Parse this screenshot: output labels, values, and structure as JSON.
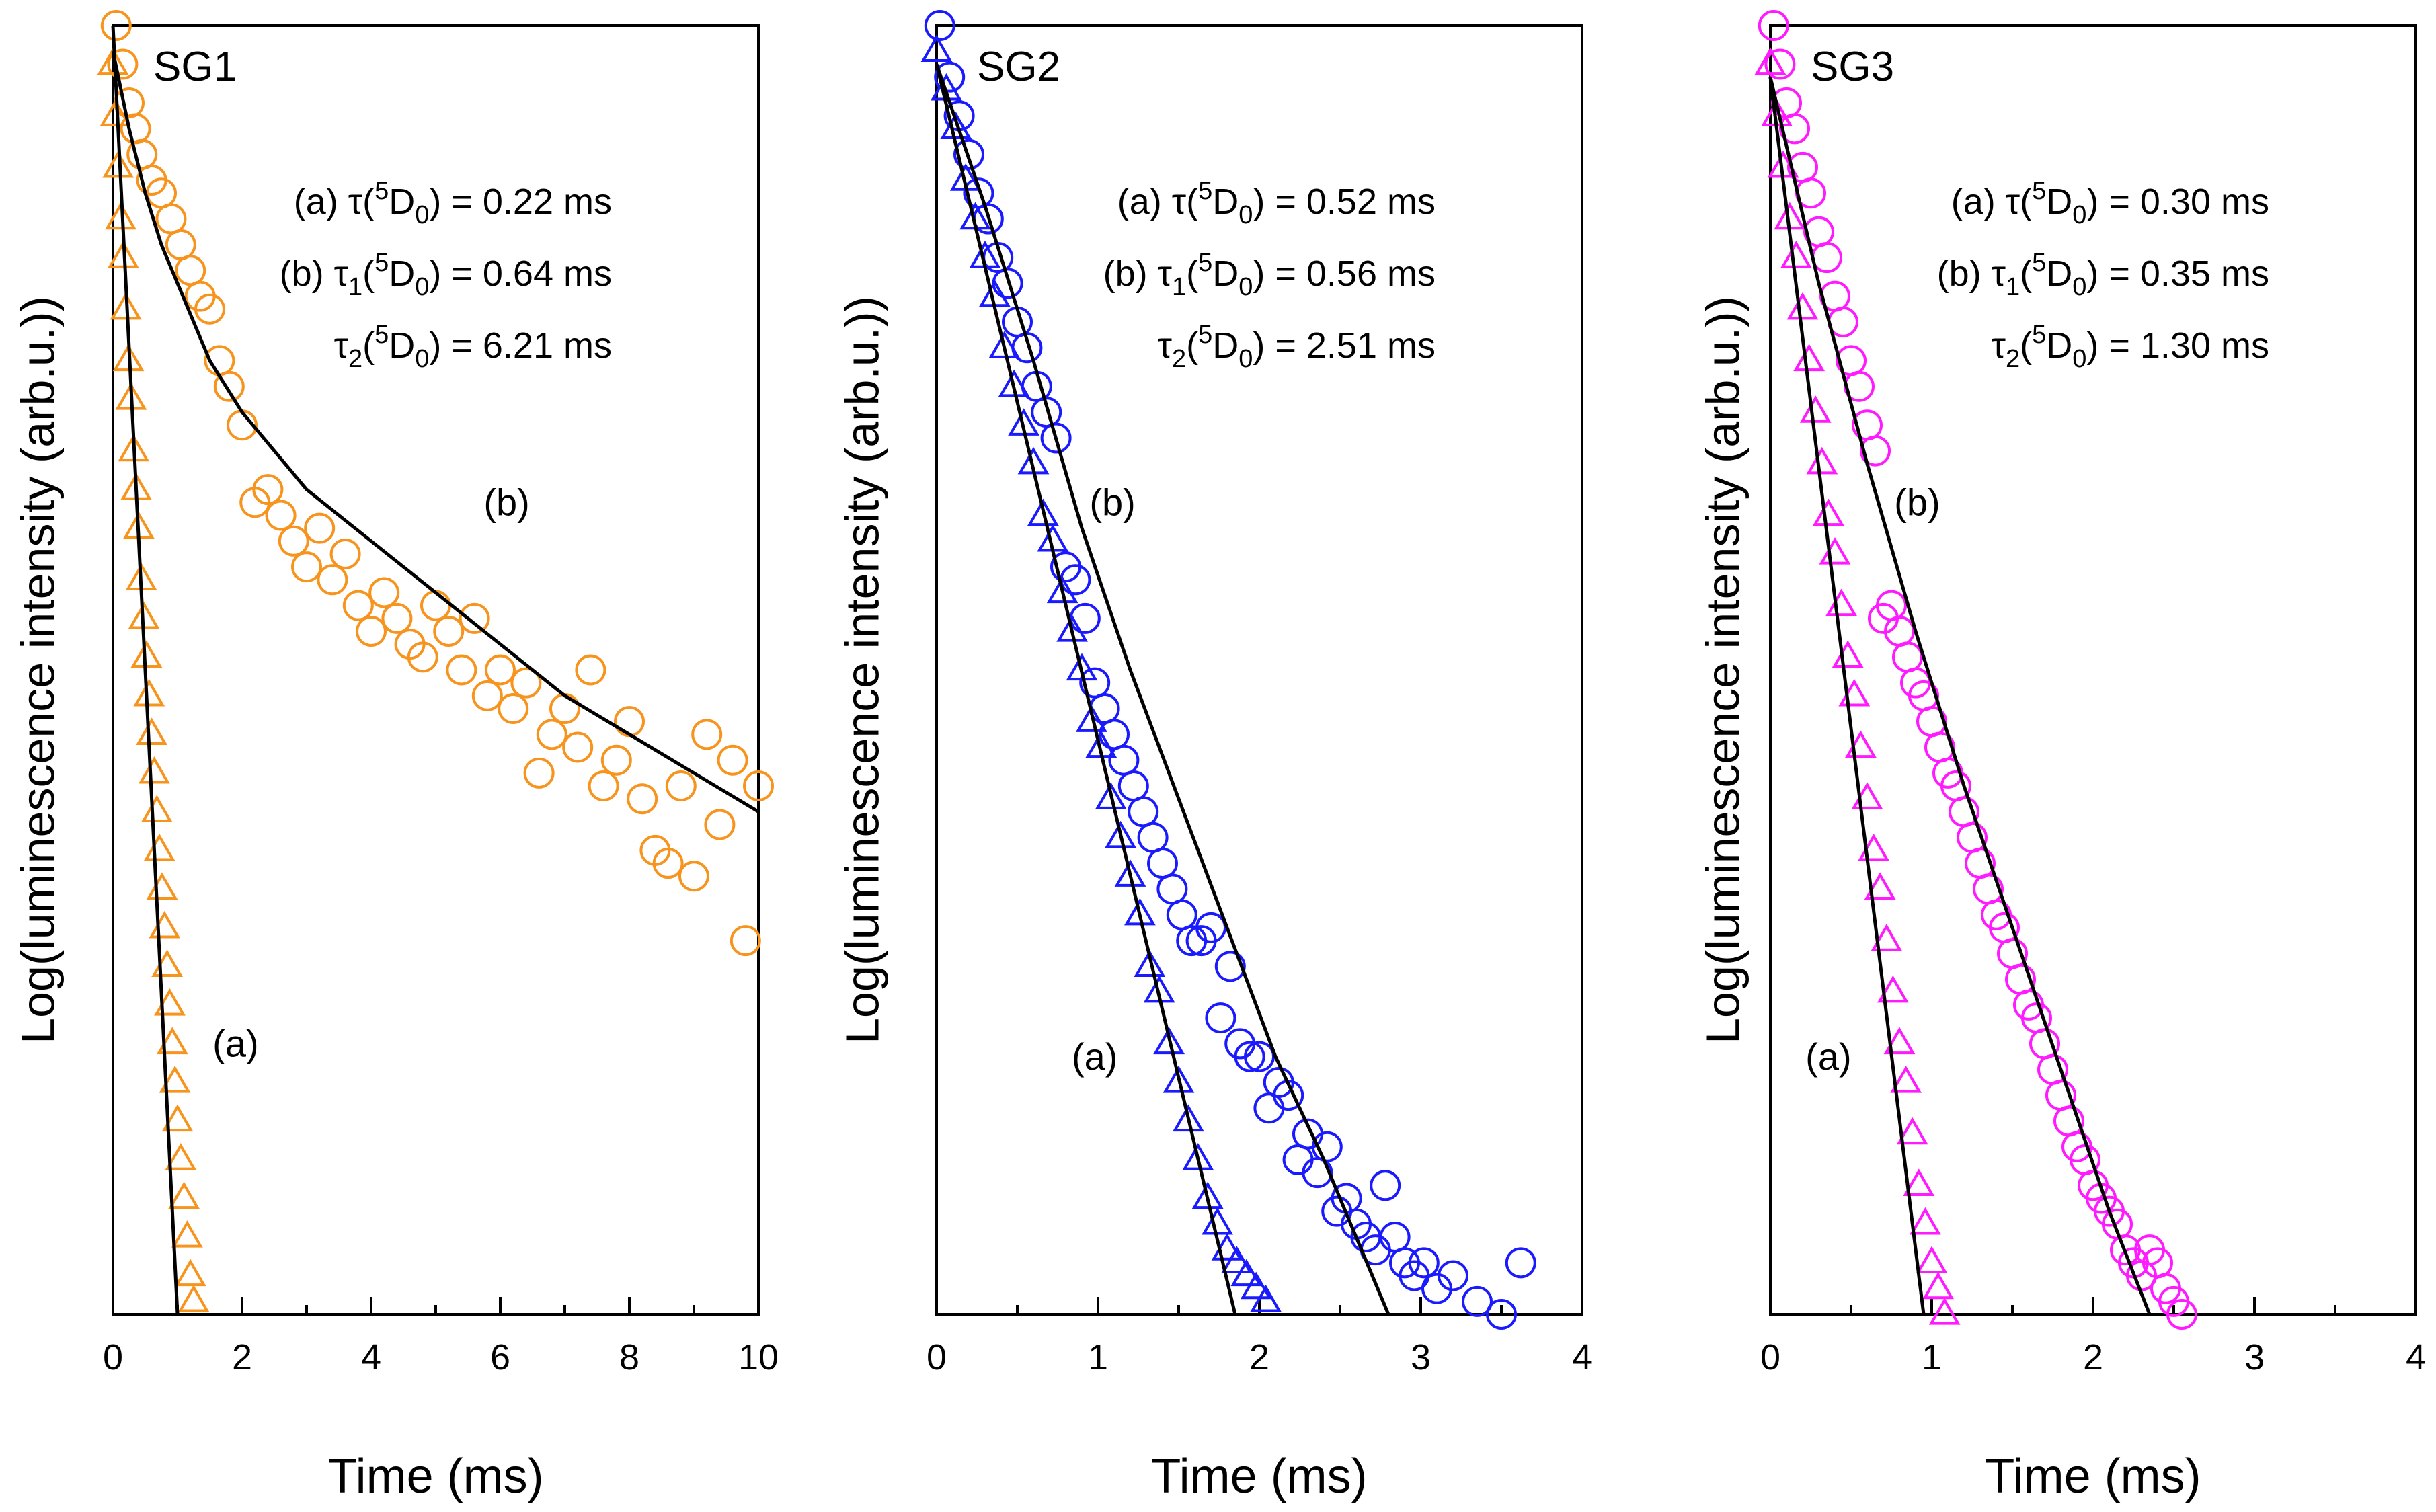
{
  "figure": {
    "panel_count": 3
  },
  "chart_data": [
    {
      "type": "scatter",
      "title": "SG1",
      "xlabel": "Time (ms)",
      "ylabel": "Log(luminescence intensity (arb.u.))",
      "xlim": [
        0,
        10
      ],
      "ylim": [
        0,
        1
      ],
      "xticks": [
        0,
        2,
        4,
        6,
        8,
        10
      ],
      "color": "#f7941d",
      "series": [
        {
          "name": "(a)",
          "marker": "triangle",
          "x": [
            0.0,
            0.04,
            0.08,
            0.12,
            0.16,
            0.2,
            0.24,
            0.28,
            0.32,
            0.36,
            0.4,
            0.44,
            0.48,
            0.52,
            0.56,
            0.6,
            0.64,
            0.68,
            0.72,
            0.76,
            0.8,
            0.84,
            0.88,
            0.92,
            0.96,
            1.0,
            1.05,
            1.1,
            1.15,
            1.2,
            1.25
          ],
          "y": [
            0.97,
            0.93,
            0.89,
            0.85,
            0.82,
            0.78,
            0.74,
            0.71,
            0.67,
            0.64,
            0.61,
            0.57,
            0.54,
            0.51,
            0.48,
            0.45,
            0.42,
            0.39,
            0.36,
            0.33,
            0.3,
            0.27,
            0.24,
            0.21,
            0.18,
            0.15,
            0.12,
            0.09,
            0.06,
            0.03,
            0.01
          ]
        },
        {
          "name": "(b)",
          "marker": "circle",
          "x": [
            0.05,
            0.15,
            0.25,
            0.35,
            0.45,
            0.6,
            0.75,
            0.9,
            1.05,
            1.2,
            1.35,
            1.5,
            1.65,
            1.8,
            2.0,
            2.2,
            2.4,
            2.6,
            2.8,
            3.0,
            3.2,
            3.4,
            3.6,
            3.8,
            4.0,
            4.2,
            4.4,
            4.6,
            4.8,
            5.0,
            5.2,
            5.4,
            5.6,
            5.8,
            6.0,
            6.2,
            6.4,
            6.6,
            6.8,
            7.0,
            7.2,
            7.4,
            7.6,
            7.8,
            8.0,
            8.2,
            8.4,
            8.6,
            8.8,
            9.0,
            9.2,
            9.4,
            9.6,
            9.8,
            10.0
          ],
          "y": [
            1.0,
            0.97,
            0.94,
            0.92,
            0.9,
            0.88,
            0.87,
            0.85,
            0.83,
            0.81,
            0.79,
            0.78,
            0.74,
            0.72,
            0.69,
            0.63,
            0.64,
            0.62,
            0.6,
            0.58,
            0.61,
            0.57,
            0.59,
            0.55,
            0.53,
            0.56,
            0.54,
            0.52,
            0.51,
            0.55,
            0.53,
            0.5,
            0.54,
            0.48,
            0.5,
            0.47,
            0.49,
            0.42,
            0.45,
            0.47,
            0.44,
            0.5,
            0.41,
            0.43,
            0.46,
            0.4,
            0.36,
            0.35,
            0.41,
            0.34,
            0.45,
            0.38,
            0.43,
            0.29,
            0.41
          ]
        }
      ],
      "fits": [
        {
          "name": "(a)",
          "x": [
            0.0,
            1.0
          ],
          "y": [
            1.0,
            0.0
          ]
        },
        {
          "name": "(b)",
          "x": [
            0.0,
            0.25,
            0.5,
            0.75,
            1.0,
            1.5,
            2.0,
            2.5,
            3.0,
            4.0,
            5.0,
            6.0,
            7.0,
            8.0,
            9.0,
            10.0
          ],
          "y": [
            0.98,
            0.92,
            0.87,
            0.83,
            0.8,
            0.74,
            0.7,
            0.67,
            0.64,
            0.6,
            0.56,
            0.52,
            0.48,
            0.45,
            0.42,
            0.39
          ]
        }
      ],
      "series_labels": [
        {
          "text": "(a)",
          "x": 1.9,
          "y": 0.2
        },
        {
          "text": "(b)",
          "x": 6.1,
          "y": 0.62
        }
      ],
      "annotations": [
        {
          "prefix": "(a) ",
          "sym": "τ",
          "symsub": "",
          "val": " = 0.22 ms"
        },
        {
          "prefix": "(b) ",
          "sym": "τ",
          "symsub": "1",
          "val": " = 0.64 ms"
        },
        {
          "prefix": "",
          "sym": "τ",
          "symsub": "2",
          "val": " = 6.21 ms"
        }
      ],
      "term": {
        "sup": "5",
        "letter": "D",
        "sub": "0"
      }
    },
    {
      "type": "scatter",
      "title": "SG2",
      "xlabel": "Time (ms)",
      "ylabel": "Log(luminescence intensity (arb.u.))",
      "xlim": [
        0,
        4
      ],
      "ylim": [
        0,
        1
      ],
      "xticks": [
        0,
        1,
        2,
        3,
        4
      ],
      "color": "#1a1aff",
      "series": [
        {
          "name": "(a)",
          "marker": "triangle",
          "x": [
            0.0,
            0.06,
            0.12,
            0.18,
            0.24,
            0.3,
            0.36,
            0.42,
            0.48,
            0.54,
            0.6,
            0.66,
            0.72,
            0.78,
            0.84,
            0.9,
            0.96,
            1.02,
            1.08,
            1.14,
            1.2,
            1.26,
            1.32,
            1.38,
            1.44,
            1.5,
            1.56,
            1.62,
            1.68,
            1.74,
            1.8,
            1.86,
            1.92,
            1.98,
            2.04
          ],
          "y": [
            0.98,
            0.95,
            0.92,
            0.88,
            0.85,
            0.82,
            0.79,
            0.75,
            0.72,
            0.69,
            0.66,
            0.62,
            0.6,
            0.56,
            0.53,
            0.5,
            0.46,
            0.44,
            0.4,
            0.37,
            0.34,
            0.31,
            0.27,
            0.25,
            0.21,
            0.18,
            0.15,
            0.12,
            0.09,
            0.07,
            0.05,
            0.04,
            0.03,
            0.02,
            0.01
          ]
        },
        {
          "name": "(b)",
          "marker": "circle",
          "x": [
            0.02,
            0.08,
            0.14,
            0.2,
            0.26,
            0.32,
            0.38,
            0.44,
            0.5,
            0.56,
            0.62,
            0.68,
            0.74,
            0.8,
            0.86,
            0.92,
            0.98,
            1.04,
            1.1,
            1.16,
            1.22,
            1.28,
            1.34,
            1.4,
            1.46,
            1.52,
            1.58,
            1.64,
            1.7,
            1.76,
            1.82,
            1.88,
            1.94,
            2.0,
            2.06,
            2.12,
            2.18,
            2.24,
            2.3,
            2.36,
            2.42,
            2.48,
            2.54,
            2.6,
            2.66,
            2.72,
            2.78,
            2.84,
            2.9,
            2.96,
            3.02,
            3.1,
            3.2,
            3.35,
            3.5,
            3.62
          ],
          "y": [
            1.0,
            0.96,
            0.93,
            0.9,
            0.87,
            0.85,
            0.82,
            0.8,
            0.77,
            0.75,
            0.72,
            0.7,
            0.68,
            0.58,
            0.57,
            0.54,
            0.49,
            0.47,
            0.45,
            0.43,
            0.41,
            0.39,
            0.37,
            0.35,
            0.33,
            0.31,
            0.29,
            0.29,
            0.3,
            0.23,
            0.27,
            0.21,
            0.2,
            0.2,
            0.16,
            0.18,
            0.17,
            0.12,
            0.14,
            0.11,
            0.13,
            0.08,
            0.09,
            0.07,
            0.06,
            0.05,
            0.1,
            0.06,
            0.04,
            0.03,
            0.04,
            0.02,
            0.03,
            0.01,
            0.0,
            0.04
          ]
        }
      ],
      "fits": [
        {
          "name": "(a)",
          "x": [
            0.0,
            1.85
          ],
          "y": [
            0.97,
            0.0
          ]
        },
        {
          "name": "(b)",
          "x": [
            0.0,
            0.3,
            0.6,
            0.9,
            1.2,
            1.5,
            1.8,
            2.1,
            2.4,
            2.7,
            2.8
          ],
          "y": [
            0.97,
            0.86,
            0.74,
            0.61,
            0.5,
            0.4,
            0.3,
            0.2,
            0.12,
            0.03,
            0.0
          ]
        }
      ],
      "series_labels": [
        {
          "text": "(a)",
          "x": 0.98,
          "y": 0.19
        },
        {
          "text": "(b)",
          "x": 1.09,
          "y": 0.62
        }
      ],
      "annotations": [
        {
          "prefix": "(a) ",
          "sym": "τ",
          "symsub": "",
          "val": " = 0.52 ms"
        },
        {
          "prefix": "(b) ",
          "sym": "τ",
          "symsub": "1",
          "val": " = 0.56 ms"
        },
        {
          "prefix": "",
          "sym": "τ",
          "symsub": "2",
          "val": " = 2.51 ms"
        }
      ],
      "term": {
        "sup": "5",
        "letter": "D",
        "sub": "0"
      }
    },
    {
      "type": "scatter",
      "title": "SG3",
      "xlabel": "Time (ms)",
      "ylabel": "Log(luminescence intensity (arb.u.))",
      "xlim": [
        0,
        4
      ],
      "ylim": [
        0,
        1
      ],
      "xticks": [
        0,
        1,
        2,
        3,
        4
      ],
      "color": "#ff1aff",
      "series": [
        {
          "name": "(a)",
          "marker": "triangle",
          "x": [
            0.0,
            0.04,
            0.08,
            0.12,
            0.16,
            0.2,
            0.24,
            0.28,
            0.32,
            0.36,
            0.4,
            0.44,
            0.48,
            0.52,
            0.56,
            0.6,
            0.64,
            0.68,
            0.72,
            0.76,
            0.8,
            0.84,
            0.88,
            0.92,
            0.96,
            1.0,
            1.04,
            1.08
          ],
          "y": [
            0.97,
            0.93,
            0.89,
            0.85,
            0.82,
            0.78,
            0.74,
            0.7,
            0.66,
            0.62,
            0.59,
            0.55,
            0.51,
            0.48,
            0.44,
            0.4,
            0.36,
            0.33,
            0.29,
            0.25,
            0.21,
            0.18,
            0.14,
            0.1,
            0.07,
            0.04,
            0.02,
            0.0
          ]
        },
        {
          "name": "(b)",
          "marker": "circle",
          "x": [
            0.02,
            0.06,
            0.1,
            0.15,
            0.2,
            0.25,
            0.3,
            0.35,
            0.4,
            0.45,
            0.5,
            0.55,
            0.6,
            0.65,
            0.7,
            0.75,
            0.8,
            0.85,
            0.9,
            0.95,
            1.0,
            1.05,
            1.1,
            1.15,
            1.2,
            1.25,
            1.3,
            1.35,
            1.4,
            1.45,
            1.5,
            1.55,
            1.6,
            1.65,
            1.7,
            1.75,
            1.8,
            1.85,
            1.9,
            1.95,
            2.0,
            2.05,
            2.1,
            2.15,
            2.2,
            2.25,
            2.3,
            2.35,
            2.4,
            2.45,
            2.5,
            2.55
          ],
          "y": [
            1.0,
            0.97,
            0.94,
            0.92,
            0.89,
            0.87,
            0.84,
            0.82,
            0.79,
            0.77,
            0.74,
            0.72,
            0.69,
            0.67,
            0.54,
            0.55,
            0.53,
            0.51,
            0.49,
            0.48,
            0.46,
            0.44,
            0.42,
            0.41,
            0.39,
            0.37,
            0.35,
            0.33,
            0.31,
            0.3,
            0.28,
            0.26,
            0.24,
            0.23,
            0.21,
            0.19,
            0.17,
            0.15,
            0.13,
            0.12,
            0.1,
            0.09,
            0.08,
            0.07,
            0.05,
            0.04,
            0.03,
            0.05,
            0.04,
            0.02,
            0.01,
            0.0
          ]
        }
      ],
      "fits": [
        {
          "name": "(a)",
          "x": [
            0.0,
            0.95
          ],
          "y": [
            0.96,
            0.0
          ]
        },
        {
          "name": "(b)",
          "x": [
            0.0,
            0.3,
            0.6,
            0.9,
            1.2,
            1.5,
            1.8,
            2.1,
            2.35
          ],
          "y": [
            0.96,
            0.8,
            0.66,
            0.53,
            0.41,
            0.3,
            0.19,
            0.08,
            0.0
          ]
        }
      ],
      "series_labels": [
        {
          "text": "(a)",
          "x": 0.36,
          "y": 0.19
        },
        {
          "text": "(b)",
          "x": 0.91,
          "y": 0.62
        }
      ],
      "annotations": [
        {
          "prefix": "(a) ",
          "sym": "τ",
          "symsub": "",
          "val": " = 0.30 ms"
        },
        {
          "prefix": "(b) ",
          "sym": "τ",
          "symsub": "1",
          "val": " =  0.35 ms"
        },
        {
          "prefix": "",
          "sym": "τ",
          "symsub": "2",
          "val": " =  1.30 ms"
        }
      ],
      "term": {
        "sup": "5",
        "letter": "D",
        "sub": "0"
      }
    }
  ]
}
